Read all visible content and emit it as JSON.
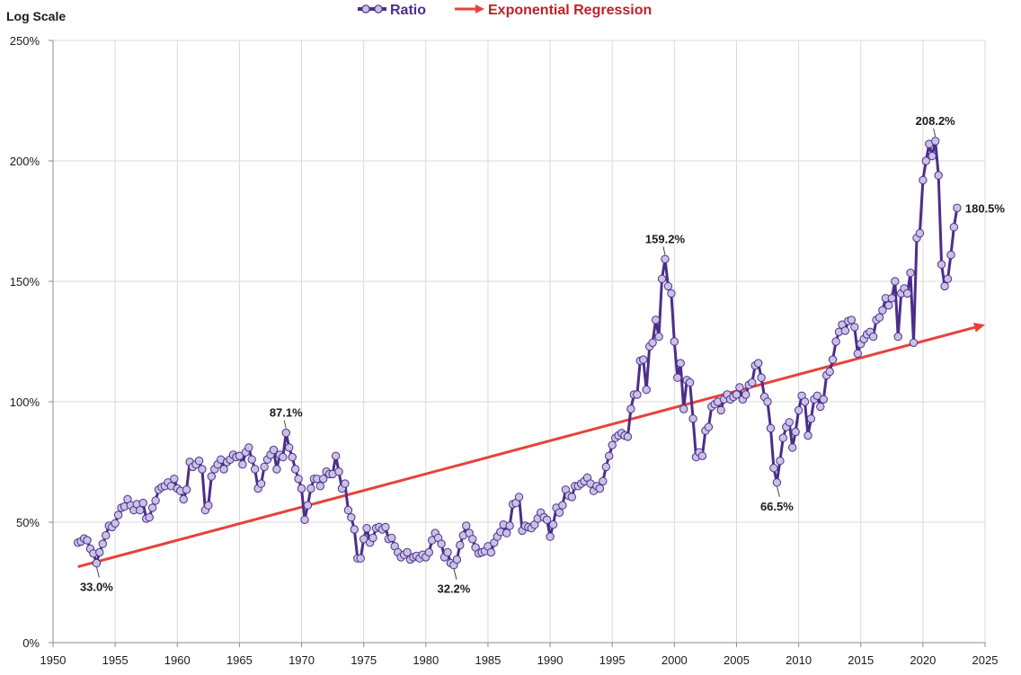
{
  "chart_data": {
    "type": "line",
    "y_axis_caption": "Log Scale",
    "xlim": [
      1950,
      2025
    ],
    "ylim": [
      0,
      250
    ],
    "x_ticks": [
      1950,
      1955,
      1960,
      1965,
      1970,
      1975,
      1980,
      1985,
      1990,
      1995,
      2000,
      2005,
      2010,
      2015,
      2020,
      2025
    ],
    "y_ticks": [
      {
        "value": 0,
        "label": "0%"
      },
      {
        "value": 50,
        "label": "50%"
      },
      {
        "value": 100,
        "label": "100%"
      },
      {
        "value": 150,
        "label": "150%"
      },
      {
        "value": 200,
        "label": "200%"
      },
      {
        "value": 250,
        "label": "250%"
      }
    ],
    "grid": true,
    "legend_position": "top-center",
    "series": [
      {
        "name": "Ratio",
        "color": "#4b2e8a",
        "marker_fill": "#c9c2e6",
        "points": [
          [
            1952.0,
            41.5
          ],
          [
            1952.25,
            42.0
          ],
          [
            1952.5,
            43.2
          ],
          [
            1952.75,
            42.5
          ],
          [
            1953.0,
            39.0
          ],
          [
            1953.25,
            37.0
          ],
          [
            1953.5,
            33.0
          ],
          [
            1953.75,
            37.5
          ],
          [
            1954.0,
            41.0
          ],
          [
            1954.25,
            44.5
          ],
          [
            1954.5,
            48.5
          ],
          [
            1954.75,
            48.0
          ],
          [
            1955.0,
            49.5
          ],
          [
            1955.25,
            53.0
          ],
          [
            1955.5,
            56.0
          ],
          [
            1955.75,
            56.5
          ],
          [
            1956.0,
            59.5
          ],
          [
            1956.25,
            57.0
          ],
          [
            1956.5,
            55.0
          ],
          [
            1956.75,
            57.5
          ],
          [
            1957.0,
            55.0
          ],
          [
            1957.25,
            58.0
          ],
          [
            1957.5,
            51.5
          ],
          [
            1957.75,
            52.0
          ],
          [
            1958.0,
            56.0
          ],
          [
            1958.25,
            59.0
          ],
          [
            1958.5,
            63.5
          ],
          [
            1958.75,
            64.5
          ],
          [
            1959.0,
            65.0
          ],
          [
            1959.25,
            66.5
          ],
          [
            1959.5,
            65.0
          ],
          [
            1959.75,
            68.0
          ],
          [
            1960.0,
            64.0
          ],
          [
            1960.25,
            63.0
          ],
          [
            1960.5,
            59.5
          ],
          [
            1960.75,
            63.5
          ],
          [
            1961.0,
            75.0
          ],
          [
            1961.25,
            73.0
          ],
          [
            1961.5,
            74.0
          ],
          [
            1961.75,
            75.5
          ],
          [
            1962.0,
            72.0
          ],
          [
            1962.25,
            55.0
          ],
          [
            1962.5,
            57.0
          ],
          [
            1962.75,
            69.0
          ],
          [
            1963.0,
            72.0
          ],
          [
            1963.25,
            74.0
          ],
          [
            1963.5,
            76.0
          ],
          [
            1963.75,
            72.0
          ],
          [
            1964.0,
            75.0
          ],
          [
            1964.25,
            76.0
          ],
          [
            1964.5,
            78.0
          ],
          [
            1964.75,
            77.0
          ],
          [
            1965.0,
            77.5
          ],
          [
            1965.25,
            74.0
          ],
          [
            1965.5,
            79.0
          ],
          [
            1965.75,
            81.0
          ],
          [
            1966.0,
            76.0
          ],
          [
            1966.25,
            72.0
          ],
          [
            1966.5,
            64.0
          ],
          [
            1966.75,
            66.0
          ],
          [
            1967.0,
            73.0
          ],
          [
            1967.25,
            76.0
          ],
          [
            1967.5,
            78.0
          ],
          [
            1967.75,
            80.0
          ],
          [
            1968.0,
            72.0
          ],
          [
            1968.25,
            78.0
          ],
          [
            1968.5,
            77.0
          ],
          [
            1968.75,
            87.1
          ],
          [
            1969.0,
            81.0
          ],
          [
            1969.25,
            77.0
          ],
          [
            1969.5,
            72.0
          ],
          [
            1969.75,
            68.0
          ],
          [
            1970.0,
            64.0
          ],
          [
            1970.25,
            51.0
          ],
          [
            1970.5,
            57.0
          ],
          [
            1970.75,
            64.0
          ],
          [
            1971.0,
            68.0
          ],
          [
            1971.25,
            68.0
          ],
          [
            1971.5,
            65.0
          ],
          [
            1971.75,
            68.0
          ],
          [
            1972.0,
            71.0
          ],
          [
            1972.25,
            70.0
          ],
          [
            1972.5,
            70.0
          ],
          [
            1972.75,
            77.5
          ],
          [
            1973.0,
            71.0
          ],
          [
            1973.25,
            64.0
          ],
          [
            1973.5,
            66.0
          ],
          [
            1973.75,
            55.0
          ],
          [
            1974.0,
            52.0
          ],
          [
            1974.25,
            47.0
          ],
          [
            1974.5,
            35.0
          ],
          [
            1974.75,
            35.0
          ],
          [
            1975.0,
            43.0
          ],
          [
            1975.25,
            47.5
          ],
          [
            1975.5,
            41.5
          ],
          [
            1975.75,
            43.5
          ],
          [
            1976.0,
            47.5
          ],
          [
            1976.25,
            48.0
          ],
          [
            1976.5,
            47.0
          ],
          [
            1976.75,
            48.0
          ],
          [
            1977.0,
            43.0
          ],
          [
            1977.25,
            43.5
          ],
          [
            1977.5,
            40.0
          ],
          [
            1977.75,
            37.5
          ],
          [
            1978.0,
            35.5
          ],
          [
            1978.25,
            36.5
          ],
          [
            1978.5,
            37.5
          ],
          [
            1978.75,
            34.5
          ],
          [
            1979.0,
            35.5
          ],
          [
            1979.25,
            36.0
          ],
          [
            1979.5,
            35.0
          ],
          [
            1979.75,
            36.5
          ],
          [
            1980.0,
            35.5
          ],
          [
            1980.25,
            37.5
          ],
          [
            1980.5,
            42.5
          ],
          [
            1980.75,
            45.5
          ],
          [
            1981.0,
            43.5
          ],
          [
            1981.25,
            41.0
          ],
          [
            1981.5,
            35.5
          ],
          [
            1981.75,
            37.5
          ],
          [
            1982.0,
            33.0
          ],
          [
            1982.25,
            32.2
          ],
          [
            1982.5,
            34.5
          ],
          [
            1982.75,
            40.5
          ],
          [
            1983.0,
            44.5
          ],
          [
            1983.25,
            48.5
          ],
          [
            1983.5,
            45.5
          ],
          [
            1983.75,
            43.0
          ],
          [
            1984.0,
            39.5
          ],
          [
            1984.25,
            37.0
          ],
          [
            1984.5,
            37.5
          ],
          [
            1984.75,
            38.0
          ],
          [
            1985.0,
            40.0
          ],
          [
            1985.25,
            37.5
          ],
          [
            1985.5,
            41.5
          ],
          [
            1985.75,
            44.0
          ],
          [
            1986.0,
            46.0
          ],
          [
            1986.25,
            49.0
          ],
          [
            1986.5,
            45.5
          ],
          [
            1986.75,
            48.5
          ],
          [
            1987.0,
            57.5
          ],
          [
            1987.25,
            58.0
          ],
          [
            1987.5,
            60.5
          ],
          [
            1987.75,
            46.5
          ],
          [
            1988.0,
            48.5
          ],
          [
            1988.25,
            48.0
          ],
          [
            1988.5,
            47.5
          ],
          [
            1988.75,
            49.0
          ],
          [
            1989.0,
            51.5
          ],
          [
            1989.25,
            54.0
          ],
          [
            1989.5,
            52.0
          ],
          [
            1989.75,
            51.0
          ],
          [
            1990.0,
            44.0
          ],
          [
            1990.25,
            49.0
          ],
          [
            1990.5,
            56.0
          ],
          [
            1990.75,
            54.0
          ],
          [
            1991.0,
            57.0
          ],
          [
            1991.25,
            63.5
          ],
          [
            1991.5,
            61.0
          ],
          [
            1991.75,
            60.5
          ],
          [
            1992.0,
            65.0
          ],
          [
            1992.25,
            65.0
          ],
          [
            1992.5,
            66.0
          ],
          [
            1992.75,
            67.0
          ],
          [
            1993.0,
            68.5
          ],
          [
            1993.25,
            66.0
          ],
          [
            1993.5,
            63.0
          ],
          [
            1993.75,
            65.0
          ],
          [
            1994.0,
            64.0
          ],
          [
            1994.25,
            67.0
          ],
          [
            1994.5,
            73.0
          ],
          [
            1994.75,
            77.5
          ],
          [
            1995.0,
            82.0
          ],
          [
            1995.25,
            85.0
          ],
          [
            1995.5,
            86.0
          ],
          [
            1995.75,
            87.0
          ],
          [
            1996.0,
            86.0
          ],
          [
            1996.25,
            85.5
          ],
          [
            1996.5,
            97.0
          ],
          [
            1996.75,
            103.0
          ],
          [
            1997.0,
            103.0
          ],
          [
            1997.25,
            117.0
          ],
          [
            1997.5,
            117.5
          ],
          [
            1997.75,
            105.0
          ],
          [
            1998.0,
            123.0
          ],
          [
            1998.25,
            124.5
          ],
          [
            1998.5,
            134.0
          ],
          [
            1998.75,
            127.0
          ],
          [
            1999.0,
            151.0
          ],
          [
            1999.25,
            159.2
          ],
          [
            1999.5,
            148.0
          ],
          [
            1999.75,
            145.0
          ],
          [
            2000.0,
            125.0
          ],
          [
            2000.25,
            110.0
          ],
          [
            2000.5,
            116.0
          ],
          [
            2000.75,
            97.0
          ],
          [
            2001.0,
            109.0
          ],
          [
            2001.25,
            108.0
          ],
          [
            2001.5,
            93.0
          ],
          [
            2001.75,
            77.0
          ],
          [
            2002.0,
            79.0
          ],
          [
            2002.25,
            77.5
          ],
          [
            2002.5,
            88.0
          ],
          [
            2002.75,
            89.5
          ],
          [
            2003.0,
            98.0
          ],
          [
            2003.25,
            99.0
          ],
          [
            2003.5,
            100.0
          ],
          [
            2003.75,
            96.5
          ],
          [
            2004.0,
            101.0
          ],
          [
            2004.25,
            103.0
          ],
          [
            2004.5,
            101.0
          ],
          [
            2004.75,
            102.0
          ],
          [
            2005.0,
            103.0
          ],
          [
            2005.25,
            106.0
          ],
          [
            2005.5,
            101.0
          ],
          [
            2005.75,
            103.0
          ],
          [
            2006.0,
            107.0
          ],
          [
            2006.25,
            108.0
          ],
          [
            2006.5,
            115.0
          ],
          [
            2006.75,
            116.0
          ],
          [
            2007.0,
            110.0
          ],
          [
            2007.25,
            102.0
          ],
          [
            2007.5,
            100.0
          ],
          [
            2007.75,
            89.0
          ],
          [
            2008.0,
            72.5
          ],
          [
            2008.25,
            66.5
          ],
          [
            2008.5,
            75.5
          ],
          [
            2008.75,
            85.0
          ],
          [
            2009.0,
            89.5
          ],
          [
            2009.25,
            91.5
          ],
          [
            2009.5,
            81.0
          ],
          [
            2009.75,
            87.5
          ],
          [
            2010.0,
            96.5
          ],
          [
            2010.25,
            102.5
          ],
          [
            2010.5,
            100.0
          ],
          [
            2010.75,
            86.0
          ],
          [
            2011.0,
            93.0
          ],
          [
            2011.25,
            101.0
          ],
          [
            2011.5,
            102.5
          ],
          [
            2011.75,
            98.0
          ],
          [
            2012.0,
            101.0
          ],
          [
            2012.25,
            111.0
          ],
          [
            2012.5,
            112.5
          ],
          [
            2012.75,
            117.5
          ],
          [
            2013.0,
            125.0
          ],
          [
            2013.25,
            129.0
          ],
          [
            2013.5,
            132.0
          ],
          [
            2013.75,
            129.5
          ],
          [
            2014.0,
            133.5
          ],
          [
            2014.25,
            134.0
          ],
          [
            2014.5,
            131.0
          ],
          [
            2014.75,
            120.0
          ],
          [
            2015.0,
            124.0
          ],
          [
            2015.25,
            126.0
          ],
          [
            2015.5,
            128.0
          ],
          [
            2015.75,
            129.0
          ],
          [
            2016.0,
            127.0
          ],
          [
            2016.25,
            134.0
          ],
          [
            2016.5,
            135.0
          ],
          [
            2016.75,
            138.0
          ],
          [
            2017.0,
            143.0
          ],
          [
            2017.25,
            140.0
          ],
          [
            2017.5,
            143.0
          ],
          [
            2017.75,
            150.0
          ],
          [
            2018.0,
            127.0
          ],
          [
            2018.25,
            145.0
          ],
          [
            2018.5,
            147.0
          ],
          [
            2018.75,
            145.0
          ],
          [
            2019.0,
            153.5
          ],
          [
            2019.25,
            124.5
          ],
          [
            2019.5,
            168.0
          ],
          [
            2019.75,
            170.0
          ],
          [
            2020.0,
            192.0
          ],
          [
            2020.25,
            200.0
          ],
          [
            2020.5,
            207.0
          ],
          [
            2020.75,
            202.0
          ],
          [
            2021.0,
            208.2
          ],
          [
            2021.25,
            194.0
          ],
          [
            2021.5,
            157.0
          ],
          [
            2021.75,
            148.0
          ],
          [
            2022.0,
            151.0
          ],
          [
            2022.25,
            161.0
          ],
          [
            2022.5,
            172.5
          ],
          [
            2022.75,
            180.5
          ]
        ]
      },
      {
        "name": "Exponential Regression",
        "color": "#e8413b",
        "start": [
          1952,
          31.5
        ],
        "end": [
          2025,
          132.0
        ]
      }
    ],
    "annotations": [
      {
        "x": 1953.5,
        "y": 33.0,
        "text": "33.0%",
        "pos": "below"
      },
      {
        "x": 1968.75,
        "y": 87.1,
        "text": "87.1%",
        "pos": "above"
      },
      {
        "x": 1982.25,
        "y": 32.2,
        "text": "32.2%",
        "pos": "below"
      },
      {
        "x": 1999.25,
        "y": 159.2,
        "text": "159.2%",
        "pos": "above"
      },
      {
        "x": 2008.25,
        "y": 66.5,
        "text": "66.5%",
        "pos": "below"
      },
      {
        "x": 2021.0,
        "y": 208.2,
        "text": "208.2%",
        "pos": "above"
      },
      {
        "x": 2022.75,
        "y": 180.5,
        "text": "180.5%",
        "pos": "right"
      }
    ]
  }
}
